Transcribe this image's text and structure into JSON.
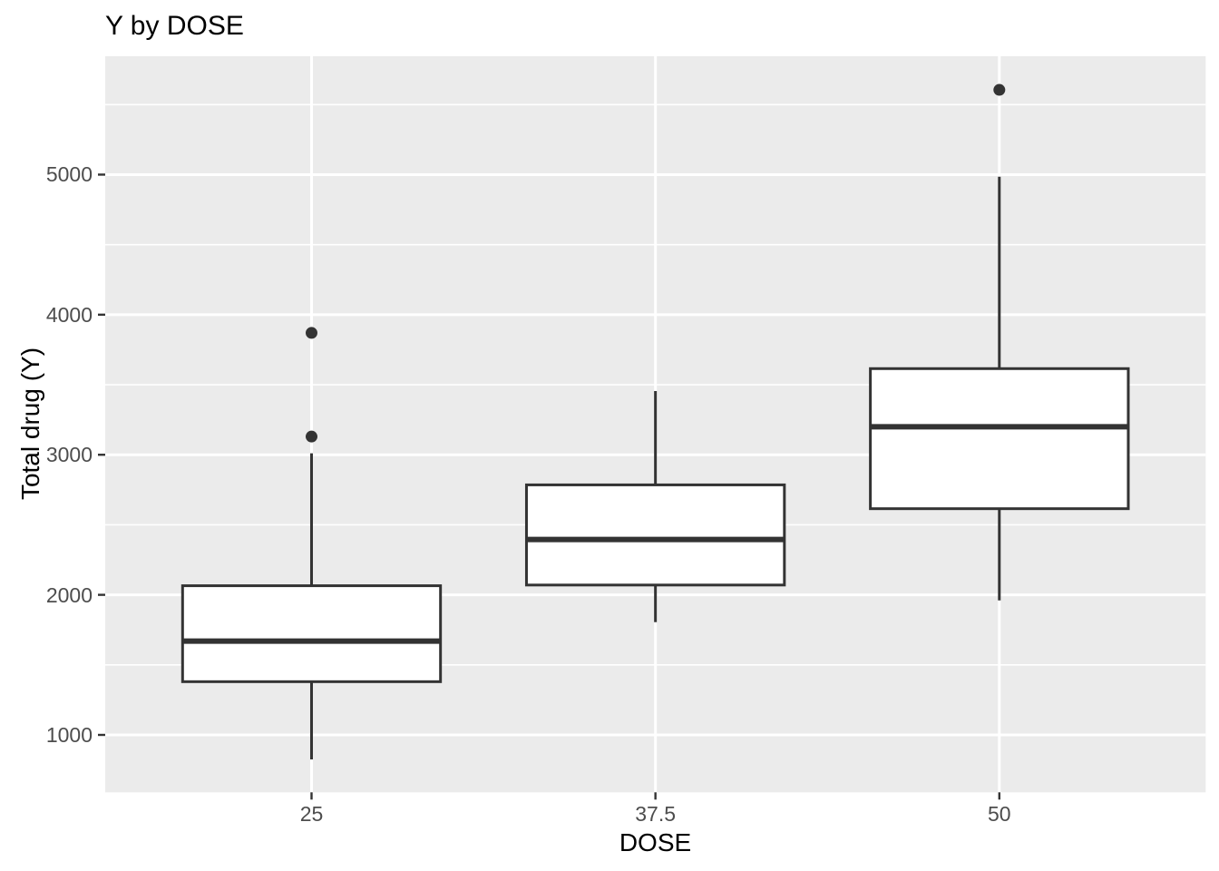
{
  "chart_data": {
    "type": "boxplot",
    "title": "Y by DOSE",
    "xlabel": "DOSE",
    "ylabel": "Total drug (Y)",
    "categories": [
      "25",
      "37.5",
      "50"
    ],
    "series": [
      {
        "category": "25",
        "whisker_low": 825,
        "q1": 1380,
        "median": 1670,
        "q3": 2065,
        "whisker_high": 3010,
        "outliers": [
          3130,
          3870
        ]
      },
      {
        "category": "37.5",
        "whisker_low": 1805,
        "q1": 2070,
        "median": 2395,
        "q3": 2785,
        "whisker_high": 3455,
        "outliers": []
      },
      {
        "category": "50",
        "whisker_low": 1960,
        "q1": 2615,
        "median": 3200,
        "q3": 3615,
        "whisker_high": 4985,
        "outliers": [
          5605
        ]
      }
    ],
    "y_ticks": [
      1000,
      2000,
      3000,
      4000,
      5000
    ],
    "y_minor_gridlines": [
      1500,
      2500,
      3500,
      4500,
      5500
    ],
    "ylim": [
      590,
      5845
    ],
    "grid": true,
    "legend": false,
    "theme": "ggplot-grey",
    "colors": {
      "panel_background": "#EBEBEB",
      "gridline": "#FFFFFF",
      "box_stroke": "#333333",
      "box_fill": "#FFFFFF",
      "outlier": "#333333",
      "tick_mark": "#333333",
      "axis_text": "#4D4D4D",
      "title_text": "#000000"
    }
  }
}
